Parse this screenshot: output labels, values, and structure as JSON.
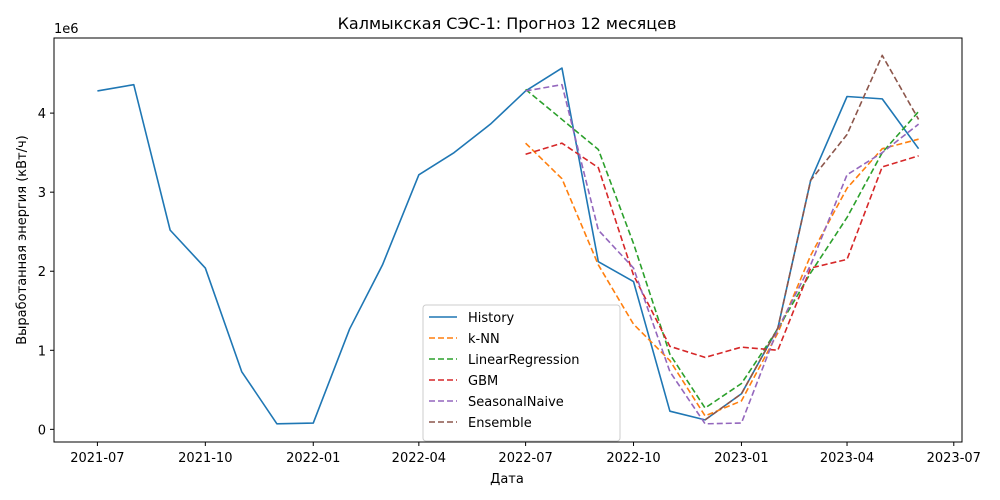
{
  "chart_data": {
    "type": "line",
    "title": "Калмыкская СЭС-1: Прогноз 12 месяцев",
    "xlabel": "Дата",
    "ylabel": "Выработанная энергия (кВт/ч)",
    "y_scale_label": "1e6",
    "xlim": [
      "2021-05-25",
      "2023-07-08"
    ],
    "ylim": [
      -0.16,
      4.95
    ],
    "y_ticks": [
      0,
      1,
      2,
      3,
      4
    ],
    "x_ticks": [
      "2021-07",
      "2021-10",
      "2022-01",
      "2022-04",
      "2022-07",
      "2022-10",
      "2023-01",
      "2023-04",
      "2023-07"
    ],
    "x_tick_dates": [
      "2021-07-01",
      "2021-10-01",
      "2022-01-01",
      "2022-04-01",
      "2022-07-01",
      "2022-10-01",
      "2023-01-01",
      "2023-04-01",
      "2023-07-01"
    ],
    "grid": false,
    "legend_position": "lower-center",
    "series": [
      {
        "name": "History",
        "color": "#1f77b4",
        "style": "solid",
        "x": [
          "2021-07-01",
          "2021-08-01",
          "2021-09-01",
          "2021-10-01",
          "2021-11-01",
          "2021-12-01",
          "2022-01-01",
          "2022-02-01",
          "2022-03-01",
          "2022-04-01",
          "2022-05-01",
          "2022-06-01",
          "2022-07-01",
          "2022-08-01",
          "2022-09-01",
          "2022-10-01",
          "2022-11-01",
          "2022-12-01",
          "2023-01-01",
          "2023-02-01",
          "2023-03-01",
          "2023-04-01",
          "2023-05-01",
          "2023-06-01"
        ],
        "values": [
          4.28,
          4.36,
          2.52,
          2.04,
          0.73,
          0.07,
          0.08,
          1.27,
          2.08,
          3.22,
          3.5,
          3.86,
          4.28,
          4.57,
          2.12,
          1.87,
          0.23,
          0.12,
          0.45,
          1.28,
          3.15,
          4.21,
          4.18,
          3.55
        ]
      },
      {
        "name": "k-NN",
        "color": "#ff7f0e",
        "style": "dashed",
        "x": [
          "2022-07-01",
          "2022-08-01",
          "2022-09-01",
          "2022-10-01",
          "2022-11-01",
          "2022-12-01",
          "2023-01-01",
          "2023-02-01",
          "2023-03-01",
          "2023-04-01",
          "2023-05-01",
          "2023-06-01"
        ],
        "values": [
          3.62,
          3.17,
          2.08,
          1.33,
          0.87,
          0.17,
          0.36,
          1.22,
          2.2,
          3.05,
          3.55,
          3.67
        ]
      },
      {
        "name": "LinearRegression",
        "color": "#2ca02c",
        "style": "dashed",
        "x": [
          "2022-07-01",
          "2022-08-01",
          "2022-09-01",
          "2022-10-01",
          "2022-11-01",
          "2022-12-01",
          "2023-01-01",
          "2023-02-01",
          "2023-03-01",
          "2023-04-01",
          "2023-05-01",
          "2023-06-01"
        ],
        "values": [
          4.3,
          3.92,
          3.54,
          2.35,
          0.95,
          0.27,
          0.58,
          1.27,
          1.98,
          2.68,
          3.5,
          4.02
        ]
      },
      {
        "name": "GBM",
        "color": "#d62728",
        "style": "dashed",
        "x": [
          "2022-07-01",
          "2022-08-01",
          "2022-09-01",
          "2022-10-01",
          "2022-11-01",
          "2022-12-01",
          "2023-01-01",
          "2023-02-01",
          "2023-03-01",
          "2023-04-01",
          "2023-05-01",
          "2023-06-01"
        ],
        "values": [
          3.48,
          3.62,
          3.31,
          1.95,
          1.05,
          0.91,
          1.04,
          1.0,
          2.04,
          2.15,
          3.32,
          3.46
        ]
      },
      {
        "name": "SeasonalNaive",
        "color": "#9467bd",
        "style": "dashed",
        "x": [
          "2022-07-01",
          "2022-08-01",
          "2022-09-01",
          "2022-10-01",
          "2022-11-01",
          "2022-12-01",
          "2023-01-01",
          "2023-02-01",
          "2023-03-01",
          "2023-04-01",
          "2023-05-01",
          "2023-06-01"
        ],
        "values": [
          4.28,
          4.36,
          2.52,
          2.04,
          0.73,
          0.07,
          0.08,
          1.27,
          2.08,
          3.22,
          3.5,
          3.86
        ]
      },
      {
        "name": "Ensemble",
        "color": "#8c564b",
        "style": "dashed",
        "x": [
          "2022-12-01",
          "2023-01-01",
          "2023-02-01",
          "2023-03-01",
          "2023-04-01",
          "2023-05-01",
          "2023-06-01"
        ],
        "values": [
          0.12,
          0.45,
          1.28,
          3.15,
          3.73,
          4.73,
          3.92
        ]
      }
    ]
  }
}
